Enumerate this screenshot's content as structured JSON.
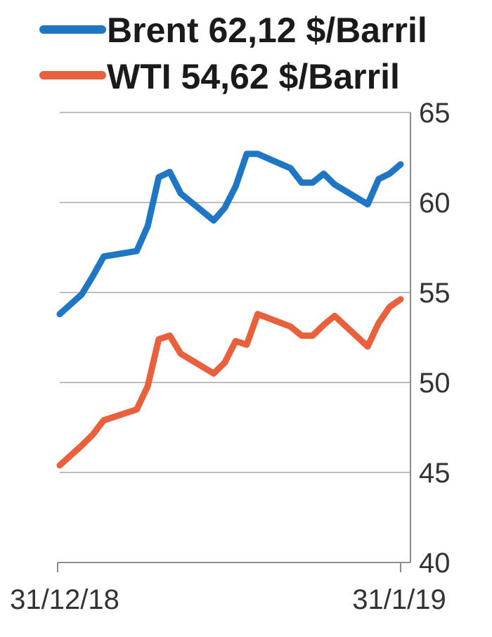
{
  "colors": {
    "brent": "#1f77c4",
    "wti": "#e8603c",
    "grid": "#a6a6a6",
    "axis": "#8c8c8c",
    "text": "#1a1a1a"
  },
  "chart_data": {
    "type": "line",
    "title": "",
    "xlabel": "",
    "ylabel": "",
    "ylim": [
      40,
      65
    ],
    "yticks": [
      "40",
      "45",
      "50",
      "55",
      "60",
      "65"
    ],
    "ytick_values": [
      40,
      45,
      50,
      55,
      60,
      65
    ],
    "xtick_labels": [
      "31/12/18",
      "31/1/19"
    ],
    "xlim": [
      "2018-12-31",
      "2019-01-31"
    ],
    "grid": true,
    "y_axis_side": "right",
    "legend_position": "top",
    "series": [
      {
        "name": "Brent",
        "legend_label": "Brent 62,12 $/Barril",
        "points": [
          [
            "2018-12-31",
            53.8
          ],
          [
            "2019-01-02",
            54.9
          ],
          [
            "2019-01-03",
            55.9
          ],
          [
            "2019-01-04",
            57.0
          ],
          [
            "2019-01-07",
            57.3
          ],
          [
            "2019-01-08",
            58.7
          ],
          [
            "2019-01-09",
            61.4
          ],
          [
            "2019-01-10",
            61.7
          ],
          [
            "2019-01-11",
            60.5
          ],
          [
            "2019-01-14",
            59.0
          ],
          [
            "2019-01-15",
            59.7
          ],
          [
            "2019-01-16",
            60.9
          ],
          [
            "2019-01-17",
            62.7
          ],
          [
            "2019-01-18",
            62.7
          ],
          [
            "2019-01-21",
            61.9
          ],
          [
            "2019-01-22",
            61.1
          ],
          [
            "2019-01-23",
            61.1
          ],
          [
            "2019-01-24",
            61.6
          ],
          [
            "2019-01-25",
            61.0
          ],
          [
            "2019-01-28",
            59.9
          ],
          [
            "2019-01-29",
            61.3
          ],
          [
            "2019-01-30",
            61.6
          ],
          [
            "2019-01-31",
            62.12
          ]
        ]
      },
      {
        "name": "WTI",
        "legend_label": "WTI 54,62 $/Barril",
        "points": [
          [
            "2018-12-31",
            45.4
          ],
          [
            "2019-01-02",
            46.5
          ],
          [
            "2019-01-03",
            47.1
          ],
          [
            "2019-01-04",
            47.9
          ],
          [
            "2019-01-07",
            48.5
          ],
          [
            "2019-01-08",
            49.8
          ],
          [
            "2019-01-09",
            52.4
          ],
          [
            "2019-01-10",
            52.6
          ],
          [
            "2019-01-11",
            51.6
          ],
          [
            "2019-01-14",
            50.5
          ],
          [
            "2019-01-15",
            51.1
          ],
          [
            "2019-01-16",
            52.3
          ],
          [
            "2019-01-17",
            52.1
          ],
          [
            "2019-01-18",
            53.8
          ],
          [
            "2019-01-21",
            53.1
          ],
          [
            "2019-01-22",
            52.6
          ],
          [
            "2019-01-23",
            52.6
          ],
          [
            "2019-01-24",
            53.2
          ],
          [
            "2019-01-25",
            53.7
          ],
          [
            "2019-01-28",
            52.0
          ],
          [
            "2019-01-29",
            53.3
          ],
          [
            "2019-01-30",
            54.2
          ],
          [
            "2019-01-31",
            54.62
          ]
        ]
      }
    ]
  }
}
